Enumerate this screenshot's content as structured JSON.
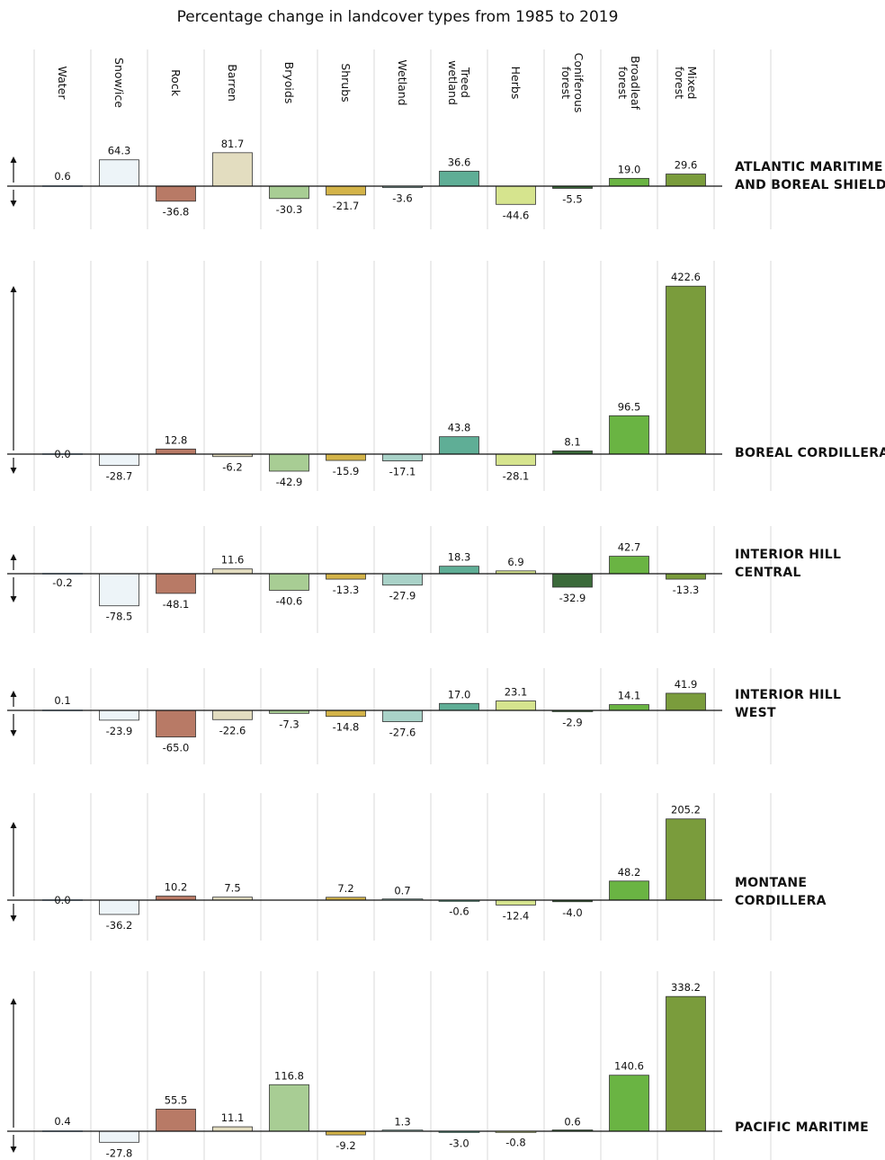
{
  "chart_data": {
    "type": "bar",
    "title": "Percentage change in landcover types from 1985 to 2019",
    "categories": [
      "Water",
      "Snow/ice",
      "Rock",
      "Barren",
      "Bryoids",
      "Shrubs",
      "Wetland",
      "Treed wetland",
      "Herbs",
      "Coniferous forest",
      "Broadleaf forest",
      "Mixed forest"
    ],
    "category_lines": [
      [
        "Water"
      ],
      [
        "Snow/ice"
      ],
      [
        "Rock"
      ],
      [
        "Barren"
      ],
      [
        "Bryoids"
      ],
      [
        "Shrubs"
      ],
      [
        "Wetland"
      ],
      [
        "Treed",
        "wetland"
      ],
      [
        "Herbs"
      ],
      [
        "Coniferous",
        "forest"
      ],
      [
        "Broadleaf",
        "forest"
      ],
      [
        "Mixed",
        "forest"
      ]
    ],
    "colors": [
      "#5a7fa0",
      "#edf4f8",
      "#b87a66",
      "#e3ddc0",
      "#a8cd94",
      "#d4b449",
      "#a9d2c8",
      "#5fae96",
      "#d6e48e",
      "#3b6a3a",
      "#6ab443",
      "#7a9c3c"
    ],
    "series": [
      {
        "name": "ATLANTIC MARITIME AND BOREAL SHIELD",
        "name_lines": [
          "ATLANTIC MARITIME",
          "AND BOREAL SHIELD"
        ],
        "values": [
          0.6,
          64.3,
          -36.8,
          81.7,
          -30.3,
          -21.7,
          -3.6,
          36.6,
          -44.6,
          -5.5,
          19.0,
          29.6
        ],
        "labels": [
          "0.6",
          "64.3",
          "-36.8",
          "81.7",
          "-30.3",
          "-21.7",
          "-3.6",
          "36.6",
          "-44.6",
          "-5.5",
          "19.0",
          "29.6"
        ]
      },
      {
        "name": "BOREAL CORDILLERA",
        "name_lines": [
          "BOREAL CORDILLERA"
        ],
        "values": [
          0.0,
          -28.7,
          12.8,
          -6.2,
          -42.9,
          -15.9,
          -17.1,
          43.8,
          -28.1,
          8.1,
          96.5,
          422.6
        ],
        "labels": [
          "0.0",
          "-28.7",
          "12.8",
          "-6.2",
          "-42.9",
          "-15.9",
          "-17.1",
          "43.8",
          "-28.1",
          "8.1",
          "96.5",
          "422.6"
        ]
      },
      {
        "name": "INTERIOR HILL CENTRAL",
        "name_lines": [
          "INTERIOR HILL",
          "CENTRAL"
        ],
        "values": [
          -0.2,
          -78.5,
          -48.1,
          11.6,
          -40.6,
          -13.3,
          -27.9,
          18.3,
          6.9,
          -32.9,
          42.7,
          -13.3
        ],
        "labels": [
          "-0.2",
          "-78.5",
          "-48.1",
          "11.6",
          "-40.6",
          "-13.3",
          "-27.9",
          "18.3",
          "6.9",
          "-32.9",
          "42.7",
          "-13.3"
        ]
      },
      {
        "name": "INTERIOR HILL WEST",
        "name_lines": [
          "INTERIOR HILL",
          "WEST"
        ],
        "values": [
          0.1,
          -23.9,
          -65.0,
          -22.6,
          -7.3,
          -14.8,
          -27.6,
          17.0,
          23.1,
          -2.9,
          14.1,
          41.9
        ],
        "labels": [
          "0.1",
          "-23.9",
          "-65.0",
          "-22.6",
          "-7.3",
          "-14.8",
          "-27.6",
          "17.0",
          "23.1",
          "-2.9",
          "14.1",
          "41.9"
        ]
      },
      {
        "name": "MONTANE CORDILLERA",
        "name_lines": [
          "MONTANE",
          "CORDILLERA"
        ],
        "values": [
          0.0,
          -36.2,
          10.2,
          7.5,
          null,
          7.2,
          0.7,
          -0.6,
          -12.4,
          -4.0,
          48.2,
          205.2
        ],
        "labels": [
          "0.0",
          "-36.2",
          "10.2",
          "7.5",
          "",
          "7.2",
          "0.7",
          "-0.6",
          "-12.4",
          "-4.0",
          "48.2",
          "205.2"
        ]
      },
      {
        "name": "PACIFIC MARITIME",
        "name_lines": [
          "PACIFIC MARITIME"
        ],
        "values": [
          0.4,
          -27.8,
          55.5,
          11.1,
          116.8,
          -9.2,
          1.3,
          -3.0,
          -0.8,
          0.6,
          140.6,
          338.2
        ],
        "labels": [
          "0.4",
          "-27.8",
          "55.5",
          "11.1",
          "116.8",
          "-9.2",
          "1.3",
          "-3.0",
          "-0.8",
          "0.6",
          "140.6",
          "338.2"
        ]
      }
    ]
  }
}
